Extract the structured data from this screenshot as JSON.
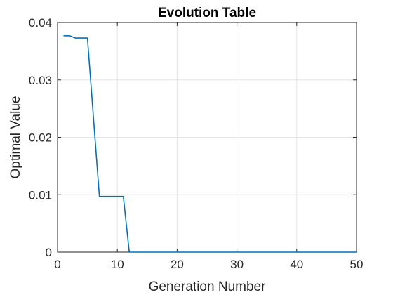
{
  "chart_data": {
    "type": "line",
    "title": "Evolution Table",
    "xlabel": "Generation Number",
    "ylabel": "Optimal Value",
    "xlim": [
      0,
      50
    ],
    "ylim": [
      0,
      0.04
    ],
    "xticks": [
      "0",
      "10",
      "20",
      "30",
      "40",
      "50"
    ],
    "yticks": [
      "0",
      "0.01",
      "0.02",
      "0.03",
      "0.04"
    ],
    "grid": true,
    "series": [
      {
        "color": "#0072BD",
        "x": [
          1,
          2,
          3,
          4,
          5,
          6,
          7,
          8,
          9,
          10,
          11,
          12,
          13,
          14,
          15,
          16,
          17,
          18,
          19,
          20,
          21,
          22,
          23,
          24,
          25,
          26,
          27,
          28,
          29,
          30,
          31,
          32,
          33,
          34,
          35,
          36,
          37,
          38,
          39,
          40,
          41,
          42,
          43,
          44,
          45,
          46,
          47,
          48,
          49,
          50
        ],
        "y": [
          0.0377,
          0.0377,
          0.0373,
          0.0373,
          0.0373,
          0.0235,
          0.0097,
          0.0097,
          0.0097,
          0.0097,
          0.0097,
          0,
          0,
          0,
          0,
          0,
          0,
          0,
          0,
          0,
          0,
          0,
          0,
          0,
          0,
          0,
          0,
          0,
          0,
          0,
          0,
          0,
          0,
          0,
          0,
          0,
          0,
          0,
          0,
          0,
          0,
          0,
          0,
          0,
          0,
          0,
          0,
          0,
          0,
          0
        ]
      }
    ]
  }
}
